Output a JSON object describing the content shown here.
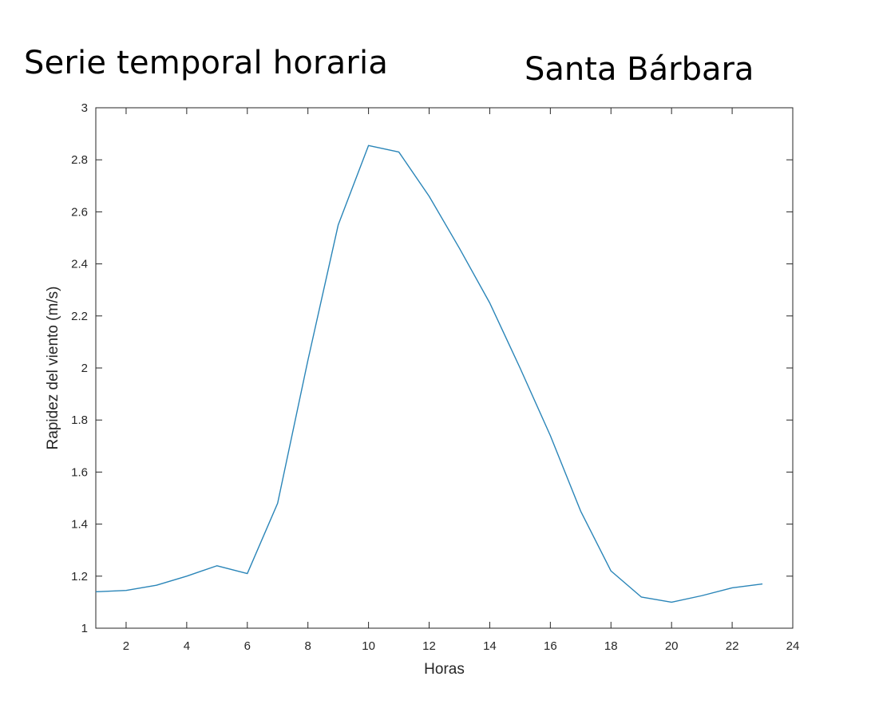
{
  "titles": {
    "left": "Serie temporal horaria",
    "right": "Santa Bárbara"
  },
  "chart_data": {
    "type": "line",
    "title": "Serie temporal horaria",
    "subtitle": "Santa Bárbara",
    "xlabel": "Horas",
    "ylabel": "Rapidez del viento (m/s)",
    "xlim": [
      1,
      24
    ],
    "ylim": [
      1,
      3
    ],
    "xticks": [
      2,
      4,
      6,
      8,
      10,
      12,
      14,
      16,
      18,
      20,
      22,
      24
    ],
    "yticks": [
      1,
      1.2,
      1.4,
      1.6,
      1.8,
      2,
      2.2,
      2.4,
      2.6,
      2.8,
      3
    ],
    "grid": false,
    "series": [
      {
        "color": "#2a85b8",
        "x": [
          1,
          2,
          3,
          4,
          5,
          6,
          7,
          8,
          9,
          10,
          11,
          12,
          13,
          14,
          15,
          16,
          17,
          18,
          19,
          20,
          21,
          22,
          23
        ],
        "y": [
          1.14,
          1.145,
          1.165,
          1.2,
          1.24,
          1.21,
          1.48,
          2.03,
          2.55,
          2.855,
          2.83,
          2.66,
          2.46,
          2.25,
          2.0,
          1.74,
          1.45,
          1.22,
          1.12,
          1.1,
          1.125,
          1.155,
          1.17
        ]
      }
    ]
  }
}
